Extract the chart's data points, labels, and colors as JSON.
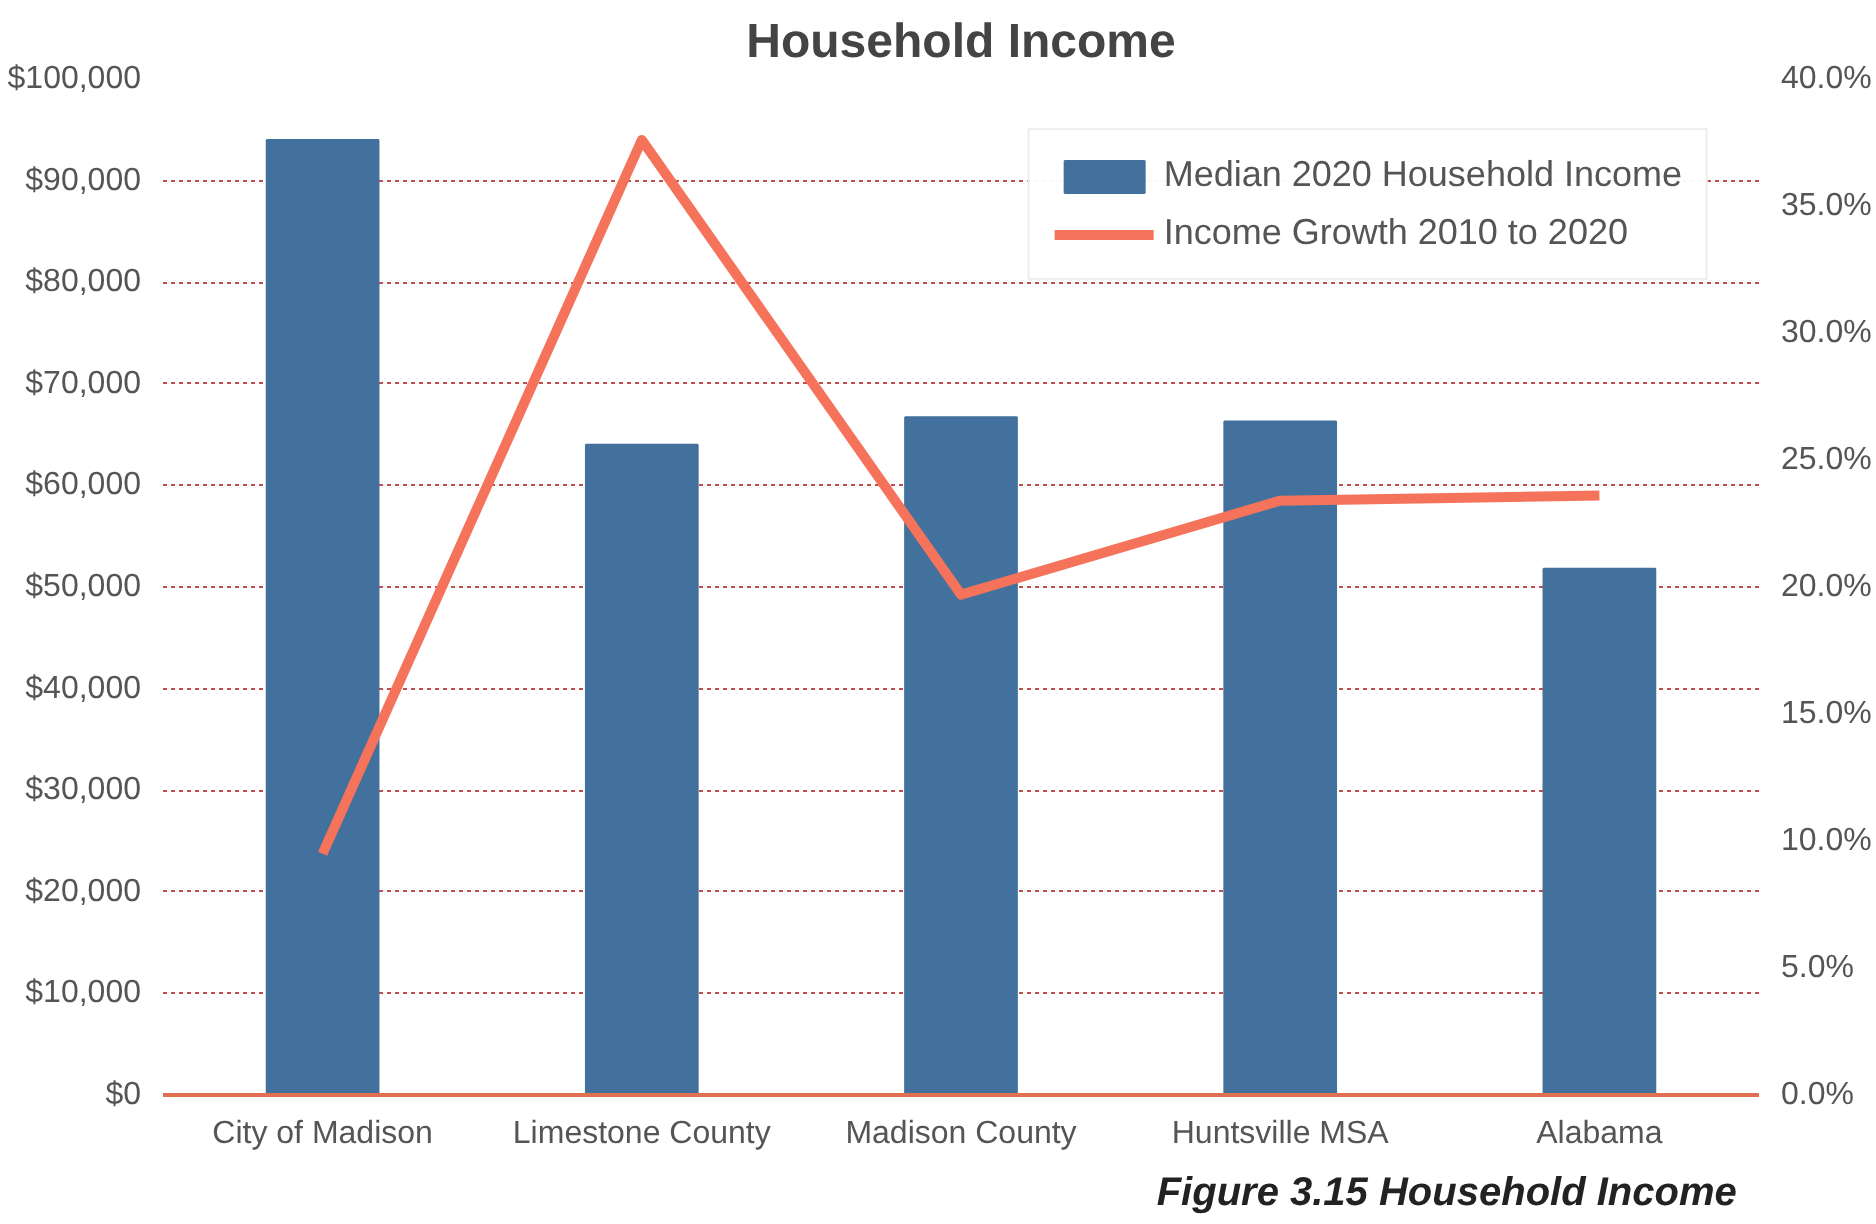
{
  "chart_data": {
    "type": "bar",
    "title": "Household Income",
    "categories": [
      "City of Madison",
      "Limestone County",
      "Madison County",
      "Huntsville MSA",
      "Alabama"
    ],
    "series": [
      {
        "name": "Median 2020 Household Income",
        "color": "#41719c",
        "values": [
          94000,
          64000,
          66700,
          66300,
          51800
        ]
      },
      {
        "name": "Income Growth 2010 to 2020",
        "type": "line",
        "axis": "y2",
        "color": "#f4735a",
        "values": [
          9.5,
          37.6,
          19.7,
          23.4,
          23.6
        ]
      }
    ],
    "ylim": [
      0,
      100000
    ],
    "yticks": [
      {
        "value": 0,
        "label": "$0"
      },
      {
        "value": 10000,
        "label": "$10,000"
      },
      {
        "value": 20000,
        "label": "$20,000"
      },
      {
        "value": 30000,
        "label": "$30,000"
      },
      {
        "value": 40000,
        "label": "$40,000"
      },
      {
        "value": 50000,
        "label": "$50,000"
      },
      {
        "value": 60000,
        "label": "$60,000"
      },
      {
        "value": 70000,
        "label": "$70,000"
      },
      {
        "value": 80000,
        "label": "$80,000"
      },
      {
        "value": 90000,
        "label": "$90,000"
      },
      {
        "value": 100000,
        "label": "$100,000"
      }
    ],
    "y2lim": [
      0,
      40
    ],
    "y2ticks": [
      {
        "value": 0,
        "label": "0.0%"
      },
      {
        "value": 5,
        "label": "5.0%"
      },
      {
        "value": 10,
        "label": "10.0%"
      },
      {
        "value": 15,
        "label": "15.0%"
      },
      {
        "value": 20,
        "label": "20.0%"
      },
      {
        "value": 25,
        "label": "25.0%"
      },
      {
        "value": 30,
        "label": "30.0%"
      },
      {
        "value": 35,
        "label": "35.0%"
      },
      {
        "value": 40,
        "label": "40.0%"
      }
    ],
    "grid": "y",
    "legend": "top right",
    "marker": "none",
    "annotations": [
      "Figure 3.15   Household Income"
    ]
  }
}
